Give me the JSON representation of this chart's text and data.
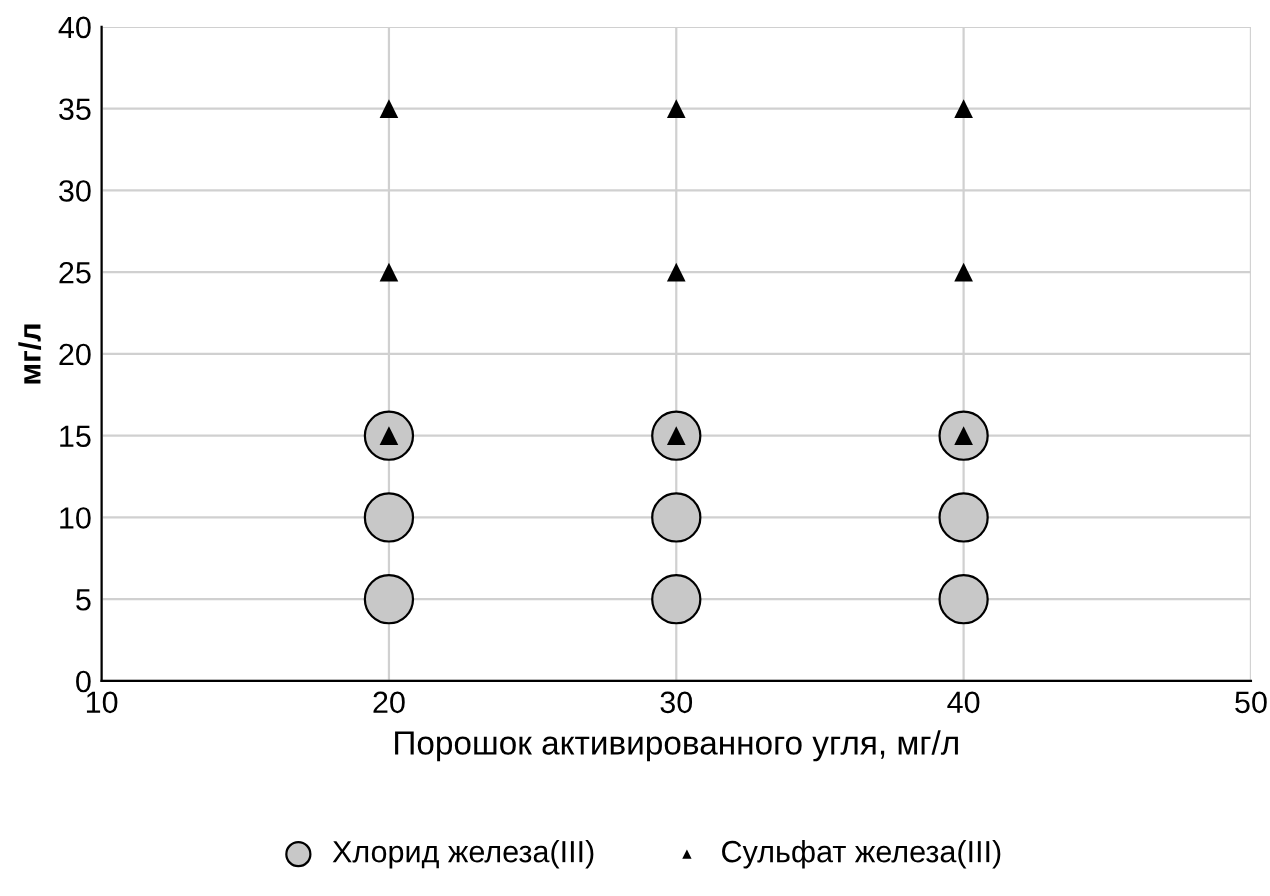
{
  "chart_data": {
    "type": "scatter",
    "xlabel": "Порошок активированного угля, мг/л",
    "ylabel": "мг/л",
    "xlim": [
      10,
      50
    ],
    "xticks": [
      10,
      20,
      30,
      40,
      50
    ],
    "ylim": [
      0,
      40
    ],
    "yticks": [
      0,
      5,
      10,
      15,
      20,
      25,
      30,
      35,
      40
    ],
    "grid": true,
    "legend": "bottom",
    "series": [
      {
        "name": "Хлорид железа(III)",
        "color": "#c8c8c8",
        "marker": "circle",
        "x": [
          20,
          20,
          20,
          30,
          30,
          30,
          40,
          40,
          40
        ],
        "values": [
          5,
          10,
          15,
          5,
          10,
          15,
          5,
          10,
          15
        ]
      },
      {
        "name": "Сульфат железа(III)",
        "color": "#000000",
        "marker": "triangle",
        "x": [
          20,
          20,
          20,
          30,
          30,
          30,
          40,
          40,
          40
        ],
        "values": [
          15,
          25,
          35,
          15,
          25,
          35,
          15,
          25,
          35
        ]
      }
    ]
  }
}
